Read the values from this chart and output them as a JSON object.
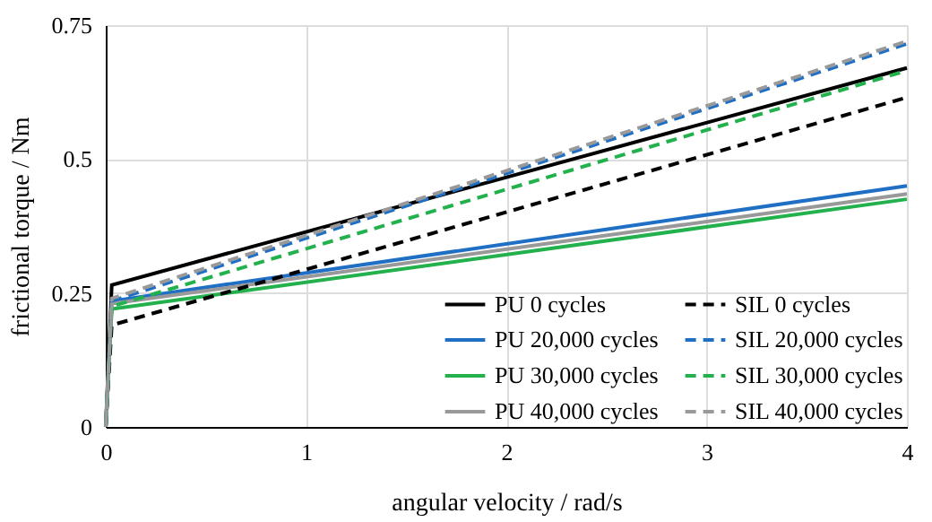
{
  "chart_data": {
    "type": "line",
    "xlabel": "angular velocity / rad/s",
    "ylabel": "frictional torque  / Nm",
    "xlim": [
      0,
      4
    ],
    "xticks": [
      0,
      1,
      2,
      3,
      4
    ],
    "ylim": [
      0,
      0.75
    ],
    "yticks": [
      0,
      0.25,
      0.5,
      0.75
    ],
    "grid": true,
    "legend": "bottom right",
    "series": [
      {
        "name": "PU 0 cycles",
        "color": "#000000",
        "line_style": "solid",
        "x": [
          0,
          0.03,
          4
        ],
        "values": [
          0,
          0.265,
          0.67
        ]
      },
      {
        "name": "PU 20,000 cycles",
        "color": "#1f6fc5",
        "line_style": "solid",
        "x": [
          0,
          0.03,
          4
        ],
        "values": [
          0,
          0.235,
          0.45
        ]
      },
      {
        "name": "PU 30,000 cycles",
        "color": "#22b14c",
        "line_style": "solid",
        "x": [
          0,
          0.03,
          4
        ],
        "values": [
          0,
          0.22,
          0.425
        ]
      },
      {
        "name": "PU 40,000 cycles",
        "color": "#999999",
        "line_style": "solid",
        "x": [
          0,
          0.03,
          4
        ],
        "values": [
          0,
          0.23,
          0.435
        ]
      },
      {
        "name": "SIL 0 cycles",
        "color": "#000000",
        "line_style": "dashed",
        "x": [
          0,
          0.03,
          4
        ],
        "values": [
          0,
          0.19,
          0.615
        ]
      },
      {
        "name": "SIL 20,000 cycles",
        "color": "#1f6fc5",
        "line_style": "dashed",
        "x": [
          0,
          0.03,
          4
        ],
        "values": [
          0,
          0.235,
          0.715
        ]
      },
      {
        "name": "SIL 30,000 cycles",
        "color": "#22b14c",
        "line_style": "dashed",
        "x": [
          0,
          0.03,
          4
        ],
        "values": [
          0,
          0.225,
          0.665
        ]
      },
      {
        "name": "SIL 40,000 cycles",
        "color": "#999999",
        "line_style": "dashed",
        "x": [
          0,
          0.03,
          4
        ],
        "values": [
          0,
          0.24,
          0.72
        ]
      }
    ]
  }
}
